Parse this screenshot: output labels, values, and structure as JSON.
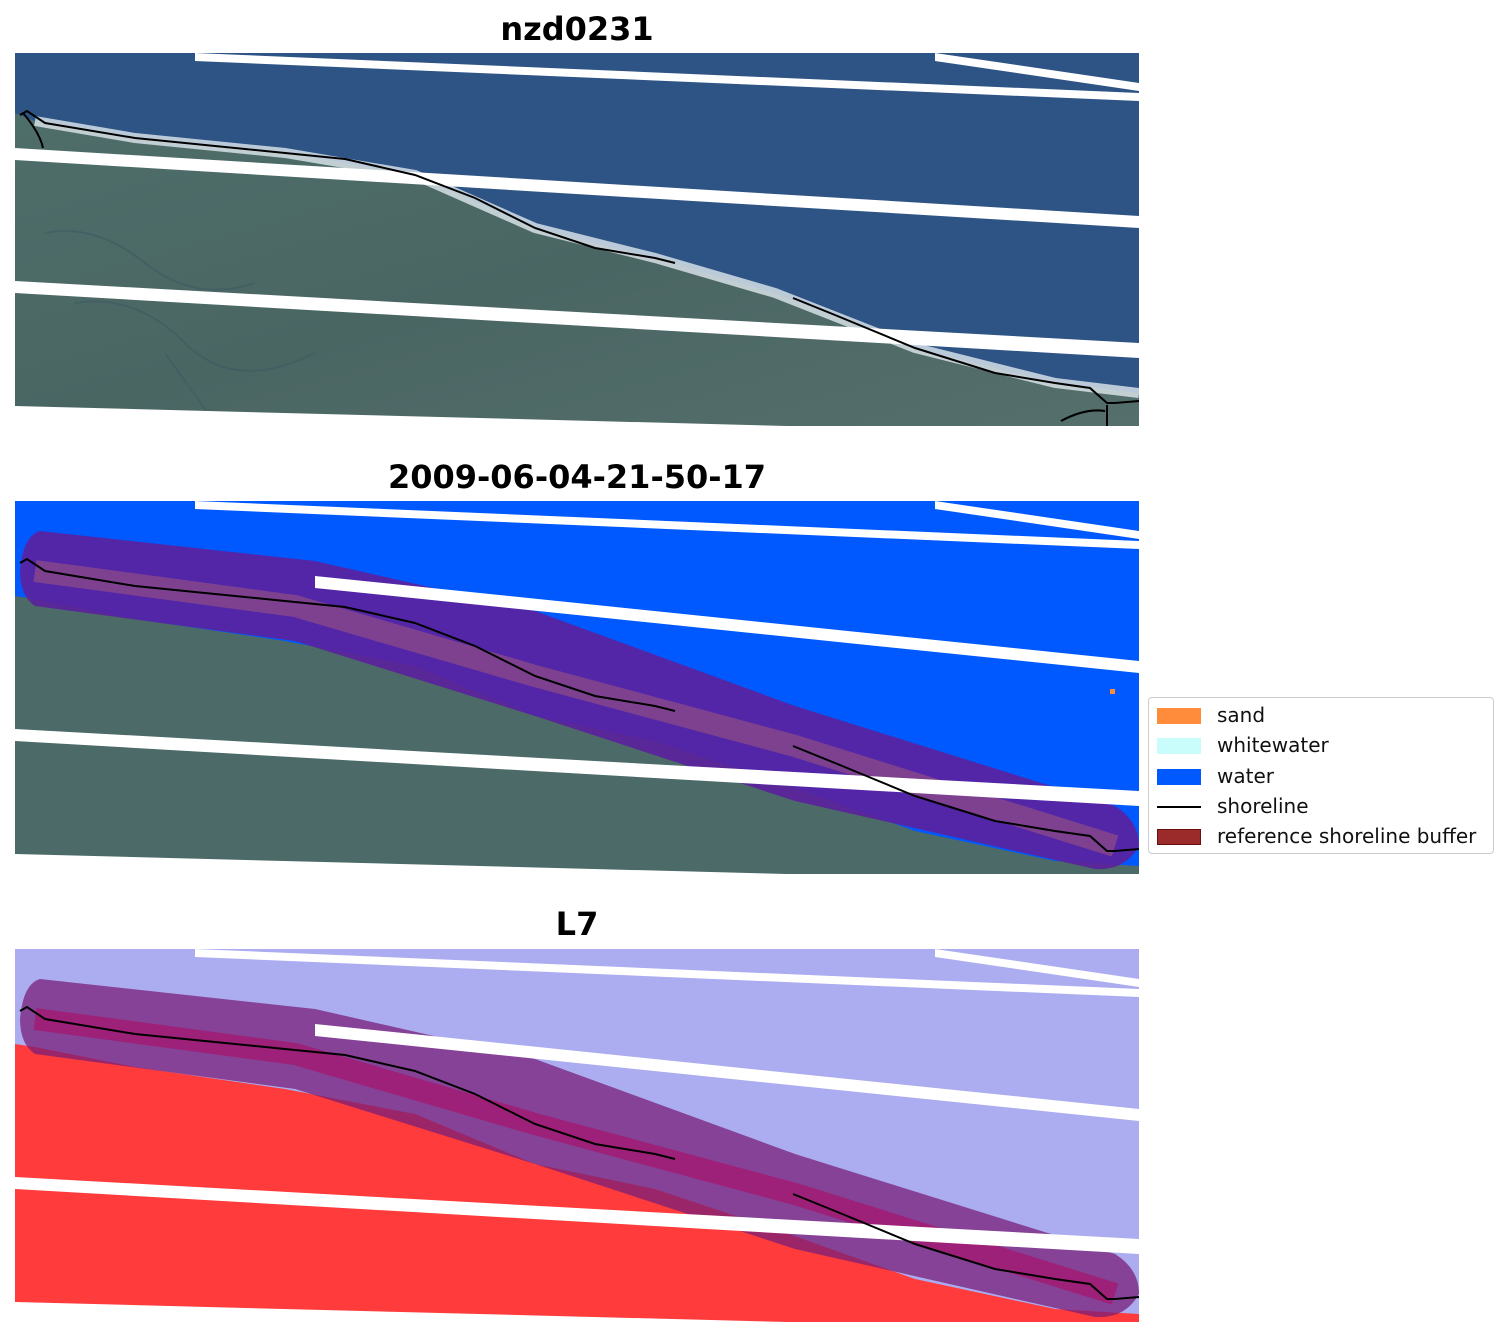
{
  "panels": {
    "rgb": {
      "title": "nzd0231"
    },
    "classified": {
      "title": "2009-06-04-21-50-17"
    },
    "index": {
      "title": "L7"
    }
  },
  "colors": {
    "sand": "#ff8c3b",
    "whitewater": "#c8fdfb",
    "water": "#0059ff",
    "shoreline": "#000000",
    "buffer": "#9b2a2a",
    "ocean_rgb": "#2f5585",
    "land_rgb": "#4b6a68",
    "index_water": "#aaaaee",
    "index_land": "#ff3b3b"
  },
  "legend": {
    "items": [
      {
        "label": "sand",
        "kind": "patch",
        "color": "#ff8c3b"
      },
      {
        "label": "whitewater",
        "kind": "patch",
        "color": "#c8fdfb"
      },
      {
        "label": "water",
        "kind": "patch",
        "color": "#0059ff"
      },
      {
        "label": "shoreline",
        "kind": "line",
        "color": "#000000"
      },
      {
        "label": "reference shoreline buffer",
        "kind": "patch",
        "color": "#9b2a2a"
      }
    ]
  }
}
